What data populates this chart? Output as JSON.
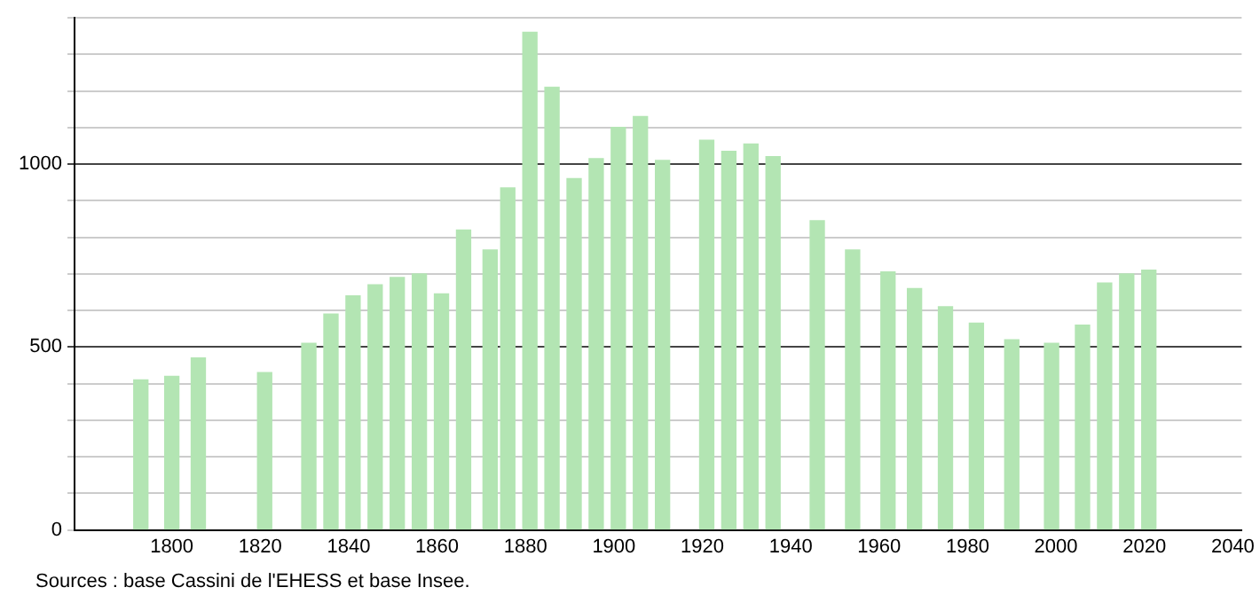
{
  "chart_data": {
    "type": "bar",
    "x": [
      1793,
      1800,
      1806,
      1821,
      1831,
      1836,
      1841,
      1846,
      1851,
      1856,
      1861,
      1866,
      1872,
      1876,
      1881,
      1886,
      1891,
      1896,
      1901,
      1906,
      1911,
      1921,
      1926,
      1931,
      1936,
      1946,
      1954,
      1962,
      1968,
      1975,
      1982,
      1990,
      1999,
      2006,
      2011,
      2016,
      2021
    ],
    "values": [
      410,
      420,
      470,
      430,
      510,
      590,
      640,
      670,
      690,
      700,
      645,
      820,
      765,
      935,
      1360,
      1210,
      960,
      1015,
      1100,
      1130,
      1010,
      1065,
      1035,
      1055,
      1020,
      845,
      765,
      705,
      660,
      610,
      565,
      520,
      510,
      560,
      675,
      700,
      710
    ],
    "color": "#b3e5b3",
    "xlim": [
      1778,
      2042
    ],
    "xticks": [
      1800,
      1820,
      1840,
      1860,
      1880,
      1900,
      1920,
      1940,
      1960,
      1980,
      2000,
      2020,
      2040
    ],
    "ylim": [
      0,
      1400
    ],
    "yticks": [
      0,
      {
        "value": 100,
        "label": null
      },
      {
        "value": 200,
        "label": null
      },
      {
        "value": 300,
        "label": null
      },
      {
        "value": 400,
        "label": null
      },
      500,
      {
        "value": 600,
        "label": null
      },
      {
        "value": 700,
        "label": null
      },
      {
        "value": 800,
        "label": null
      },
      {
        "value": 900,
        "label": null
      },
      1000,
      {
        "value": 1100,
        "label": null
      },
      {
        "value": 1200,
        "label": null
      },
      {
        "value": 1300,
        "label": null
      },
      {
        "value": 1400,
        "label": null
      }
    ],
    "grid": "y",
    "annotations": [
      "Sources : base Cassini de l'EHESS et base Insee."
    ]
  }
}
